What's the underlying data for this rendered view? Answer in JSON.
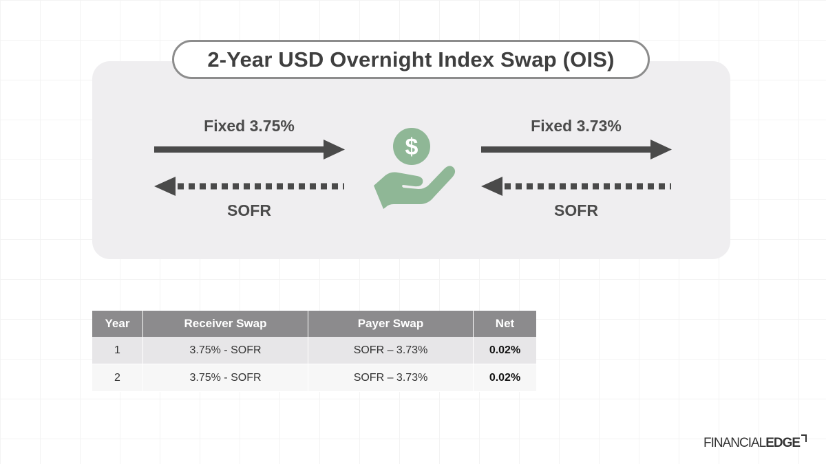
{
  "title": "2-Year USD Overnight Index Swap (OIS)",
  "left_flow": {
    "fixed_label": "Fixed 3.75%",
    "floating_label": "SOFR"
  },
  "right_flow": {
    "fixed_label": "Fixed 3.73%",
    "floating_label": "SOFR"
  },
  "center_icon": {
    "icon": "hand-holding-dollar-icon",
    "symbol": "$",
    "color": "#8fb796"
  },
  "colors": {
    "arrow": "#4a4a4a",
    "panel": "#efeef0",
    "table_header": "#8c8b8d"
  },
  "table": {
    "headers": [
      "Year",
      "Receiver Swap",
      "Payer Swap",
      "Net"
    ],
    "rows": [
      [
        "1",
        "3.75% - SOFR",
        "SOFR – 3.73%",
        "0.02%"
      ],
      [
        "2",
        "3.75% - SOFR",
        "SOFR – 3.73%",
        "0.02%"
      ]
    ]
  },
  "logo": {
    "part1": "FINANCIAL",
    "part2": "EDGE"
  }
}
